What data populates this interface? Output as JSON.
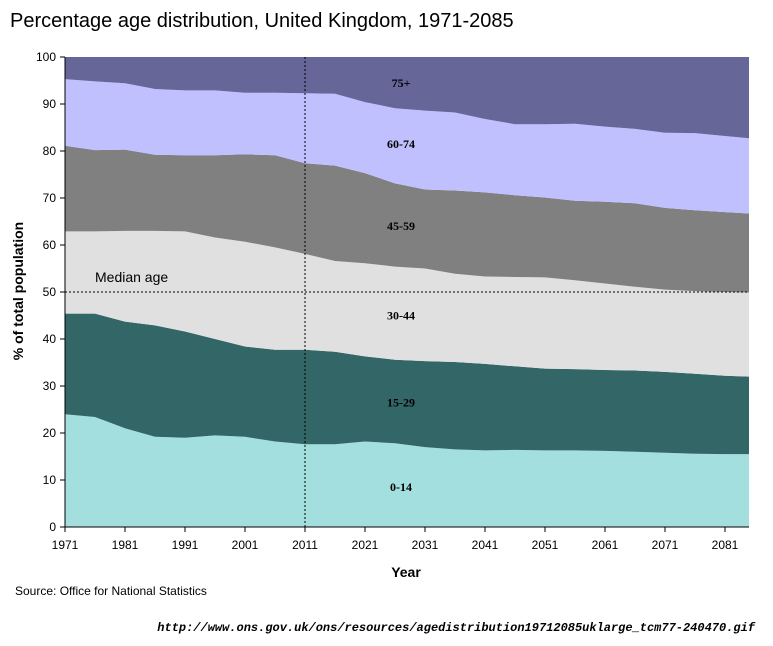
{
  "chart_data": {
    "type": "area",
    "stacked": true,
    "title": "Percentage age distribution, United Kingdom, 1971-2085",
    "xlabel": "Year",
    "ylabel": "% of total population",
    "xlim": [
      1971,
      2085
    ],
    "ylim": [
      0,
      100
    ],
    "x_ticks": [
      1971,
      1981,
      1991,
      2001,
      2011,
      2021,
      2031,
      2041,
      2051,
      2061,
      2071,
      2081
    ],
    "y_ticks": [
      0,
      10,
      20,
      30,
      40,
      50,
      60,
      70,
      80,
      90,
      100
    ],
    "x": [
      1971,
      1976,
      1981,
      1986,
      1991,
      1996,
      2001,
      2006,
      2011,
      2016,
      2021,
      2026,
      2031,
      2036,
      2041,
      2046,
      2051,
      2056,
      2061,
      2066,
      2071,
      2076,
      2081,
      2085
    ],
    "series": [
      {
        "name": "0-14",
        "label": "0-14",
        "color": "#a4dfe0",
        "label_x": 2027,
        "label_y": 8.5,
        "values": [
          24,
          23.4,
          21,
          19.2,
          19,
          19.5,
          19.2,
          18.2,
          17.6,
          17.6,
          18.2,
          17.8,
          17,
          16.5,
          16.3,
          16.4,
          16.3,
          16.3,
          16.2,
          16,
          15.8,
          15.6,
          15.5,
          15.5
        ]
      },
      {
        "name": "15-29",
        "label": "15-29",
        "color": "#336666",
        "label_x": 2027,
        "label_y": 26.5,
        "values": [
          21.4,
          22,
          22.7,
          23.7,
          22.6,
          20.5,
          19.2,
          19.5,
          20.1,
          19.7,
          18.1,
          17.8,
          18.3,
          18.6,
          18.4,
          17.8,
          17.4,
          17.3,
          17.2,
          17.3,
          17.2,
          17.0,
          16.7,
          16.5
        ]
      },
      {
        "name": "30-44",
        "label": "30-44",
        "color": "#e0e0e0",
        "label_x": 2027,
        "label_y": 45,
        "values": [
          17.5,
          17.5,
          19.3,
          20.1,
          21.3,
          21.6,
          22.3,
          21.8,
          20.4,
          19.3,
          19.8,
          19.8,
          19.7,
          18.8,
          18.6,
          19.0,
          19.4,
          18.9,
          18.4,
          17.8,
          17.5,
          17.6,
          17.8,
          17.9
        ]
      },
      {
        "name": "45-59",
        "label": "45-59",
        "color": "#808080",
        "label_x": 2027,
        "label_y": 64,
        "values": [
          18.2,
          17.3,
          17.3,
          16.2,
          16.2,
          17.5,
          18.6,
          19.6,
          19.3,
          20.3,
          19.2,
          17.7,
          16.8,
          17.7,
          17.9,
          17.4,
          17.0,
          16.9,
          17.4,
          17.8,
          17.4,
          17.2,
          17.0,
          16.8
        ]
      },
      {
        "name": "60-74",
        "label": "60-74",
        "color": "#c0c0ff",
        "label_x": 2027,
        "label_y": 81.5,
        "values": [
          14.2,
          14.6,
          14.1,
          14.0,
          13.8,
          13.8,
          13.1,
          13.3,
          14.9,
          15.3,
          15.1,
          16.0,
          16.8,
          16.6,
          15.6,
          15.1,
          15.6,
          16.4,
          16.0,
          15.8,
          16.0,
          16.4,
          16.2,
          16.0
        ]
      },
      {
        "name": "75+",
        "label": "75+",
        "color": "#666699",
        "label_x": 2027,
        "label_y": 94.5,
        "values": [
          4.7,
          5.2,
          5.6,
          6.8,
          7.1,
          7.1,
          7.6,
          7.6,
          7.7,
          7.8,
          9.6,
          10.9,
          11.4,
          11.8,
          13.2,
          14.3,
          14.3,
          14.2,
          14.8,
          15.3,
          16.1,
          16.2,
          16.8,
          17.3
        ]
      }
    ],
    "reference_lines": [
      {
        "type": "horizontal",
        "value": 50,
        "label": "Median age",
        "style": "dotted"
      },
      {
        "type": "vertical",
        "value": 2011,
        "style": "dotted"
      }
    ],
    "grid": false,
    "legend": "inline labels"
  },
  "source": "Source: Office for National Statistics",
  "url": "http://www.ons.gov.uk/ons/resources/agedistribution19712085uklarge_tcm77-240470.gif"
}
